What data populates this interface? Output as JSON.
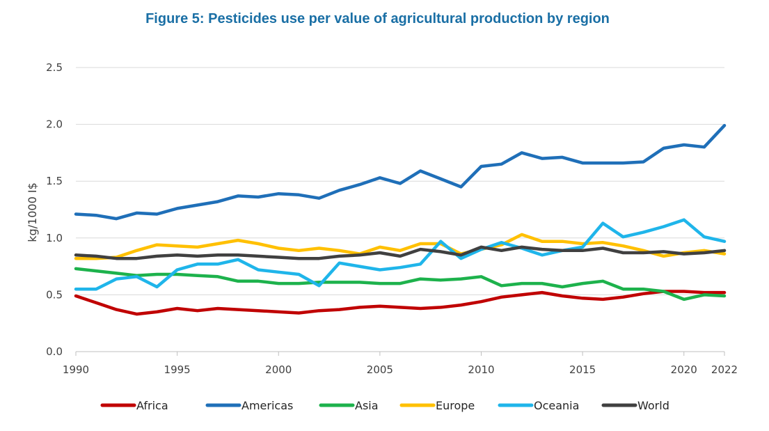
{
  "chart_data": {
    "type": "line",
    "title": "Figure 5: Pesticides use per value of agricultural production by region",
    "xlabel": "",
    "ylabel": "kg/1000 I$",
    "ylim": [
      0,
      2.5
    ],
    "yticks": [
      "0.0",
      "0.5",
      "1.0",
      "1.5",
      "2.0",
      "2.5"
    ],
    "xticks": [
      "1990",
      "1995",
      "2000",
      "2005",
      "2010",
      "2015",
      "2020",
      "2022"
    ],
    "grid": true,
    "legend_position": "bottom",
    "x": [
      1990,
      1991,
      1992,
      1993,
      1994,
      1995,
      1996,
      1997,
      1998,
      1999,
      2000,
      2001,
      2002,
      2003,
      2004,
      2005,
      2006,
      2007,
      2008,
      2009,
      2010,
      2011,
      2012,
      2013,
      2014,
      2015,
      2016,
      2017,
      2018,
      2019,
      2020,
      2021,
      2022
    ],
    "series": [
      {
        "name": "Africa",
        "color": "#c00000",
        "values": [
          0.49,
          0.43,
          0.37,
          0.33,
          0.35,
          0.38,
          0.36,
          0.38,
          0.37,
          0.36,
          0.35,
          0.34,
          0.36,
          0.37,
          0.39,
          0.4,
          0.39,
          0.38,
          0.39,
          0.41,
          0.44,
          0.48,
          0.5,
          0.52,
          0.49,
          0.47,
          0.46,
          0.48,
          0.51,
          0.53,
          0.53,
          0.52,
          0.52
        ]
      },
      {
        "name": "Americas",
        "color": "#1f6fb8",
        "values": [
          1.21,
          1.2,
          1.17,
          1.22,
          1.21,
          1.26,
          1.29,
          1.32,
          1.37,
          1.36,
          1.39,
          1.38,
          1.35,
          1.42,
          1.47,
          1.53,
          1.48,
          1.59,
          1.52,
          1.45,
          1.63,
          1.65,
          1.75,
          1.7,
          1.71,
          1.66,
          1.66,
          1.66,
          1.67,
          1.79,
          1.82,
          1.8,
          1.99
        ]
      },
      {
        "name": "Asia",
        "color": "#1db24c",
        "values": [
          0.73,
          0.71,
          0.69,
          0.67,
          0.68,
          0.68,
          0.67,
          0.66,
          0.62,
          0.62,
          0.6,
          0.6,
          0.61,
          0.61,
          0.61,
          0.6,
          0.6,
          0.64,
          0.63,
          0.64,
          0.66,
          0.58,
          0.6,
          0.6,
          0.57,
          0.6,
          0.62,
          0.55,
          0.55,
          0.53,
          0.46,
          0.5,
          0.49
        ]
      },
      {
        "name": "Europe",
        "color": "#ffc000",
        "values": [
          0.82,
          0.82,
          0.83,
          0.89,
          0.94,
          0.93,
          0.92,
          0.95,
          0.98,
          0.95,
          0.91,
          0.89,
          0.91,
          0.89,
          0.86,
          0.92,
          0.89,
          0.95,
          0.95,
          0.86,
          0.9,
          0.94,
          1.03,
          0.97,
          0.97,
          0.95,
          0.96,
          0.93,
          0.89,
          0.84,
          0.87,
          0.89,
          0.86
        ]
      },
      {
        "name": "Oceania",
        "color": "#1fb5ea",
        "values": [
          0.55,
          0.55,
          0.64,
          0.66,
          0.57,
          0.72,
          0.77,
          0.77,
          0.81,
          0.72,
          0.7,
          0.68,
          0.58,
          0.78,
          0.75,
          0.72,
          0.74,
          0.77,
          0.97,
          0.82,
          0.9,
          0.96,
          0.91,
          0.85,
          0.89,
          0.92,
          1.13,
          1.01,
          1.05,
          1.1,
          1.16,
          1.01,
          0.97
        ]
      },
      {
        "name": "World",
        "color": "#404040",
        "values": [
          0.85,
          0.84,
          0.82,
          0.82,
          0.84,
          0.85,
          0.84,
          0.85,
          0.85,
          0.84,
          0.83,
          0.82,
          0.82,
          0.84,
          0.85,
          0.87,
          0.84,
          0.9,
          0.88,
          0.85,
          0.92,
          0.89,
          0.92,
          0.9,
          0.89,
          0.89,
          0.91,
          0.87,
          0.87,
          0.88,
          0.86,
          0.87,
          0.89
        ]
      }
    ]
  }
}
